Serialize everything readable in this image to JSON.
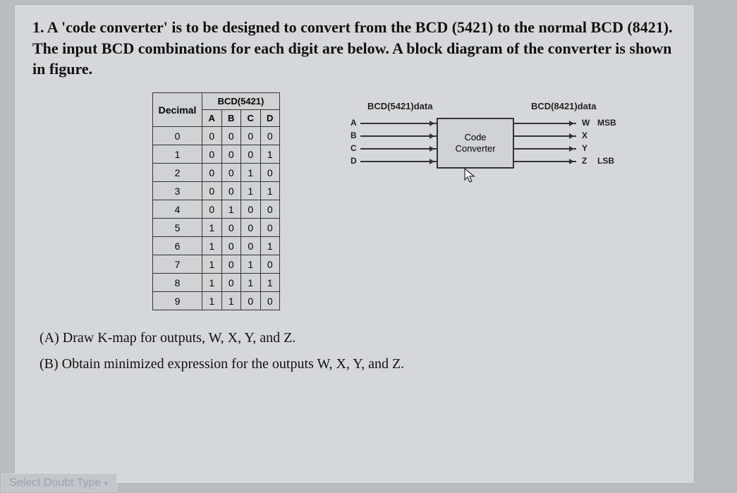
{
  "problem": {
    "text": "1. A 'code converter' is to be designed to convert from the BCD (5421) to the normal BCD (8421). The input BCD combinations for each digit are below. A block diagram of the converter is shown in figure."
  },
  "table": {
    "header_decimal": "Decimal",
    "header_group": "BCD(5421)",
    "cols": [
      "A",
      "B",
      "C",
      "D"
    ],
    "rows": [
      {
        "dec": "0",
        "bits": [
          "0",
          "0",
          "0",
          "0"
        ]
      },
      {
        "dec": "1",
        "bits": [
          "0",
          "0",
          "0",
          "1"
        ]
      },
      {
        "dec": "2",
        "bits": [
          "0",
          "0",
          "1",
          "0"
        ]
      },
      {
        "dec": "3",
        "bits": [
          "0",
          "0",
          "1",
          "1"
        ]
      },
      {
        "dec": "4",
        "bits": [
          "0",
          "1",
          "0",
          "0"
        ]
      },
      {
        "dec": "5",
        "bits": [
          "1",
          "0",
          "0",
          "0"
        ]
      },
      {
        "dec": "6",
        "bits": [
          "1",
          "0",
          "0",
          "1"
        ]
      },
      {
        "dec": "7",
        "bits": [
          "1",
          "0",
          "1",
          "0"
        ]
      },
      {
        "dec": "8",
        "bits": [
          "1",
          "0",
          "1",
          "1"
        ]
      },
      {
        "dec": "9",
        "bits": [
          "1",
          "1",
          "0",
          "0"
        ]
      }
    ]
  },
  "diagram": {
    "title_in": "BCD(5421)data",
    "title_out": "BCD(8421)data",
    "box_line1": "Code",
    "box_line2": "Converter",
    "inputs": [
      "A",
      "B",
      "C",
      "D"
    ],
    "outputs": [
      "W",
      "X",
      "Y",
      "Z"
    ],
    "msb_label": "MSB",
    "lsb_label": "LSB",
    "arrow_color": "#333333",
    "box_border": "#333333"
  },
  "questions": {
    "a": "(A) Draw K-map for outputs, W, X, Y, and Z.",
    "b": "(B) Obtain minimized expression for the outputs W, X, Y, and Z."
  },
  "footer": {
    "select": "Select Doubt Type"
  }
}
